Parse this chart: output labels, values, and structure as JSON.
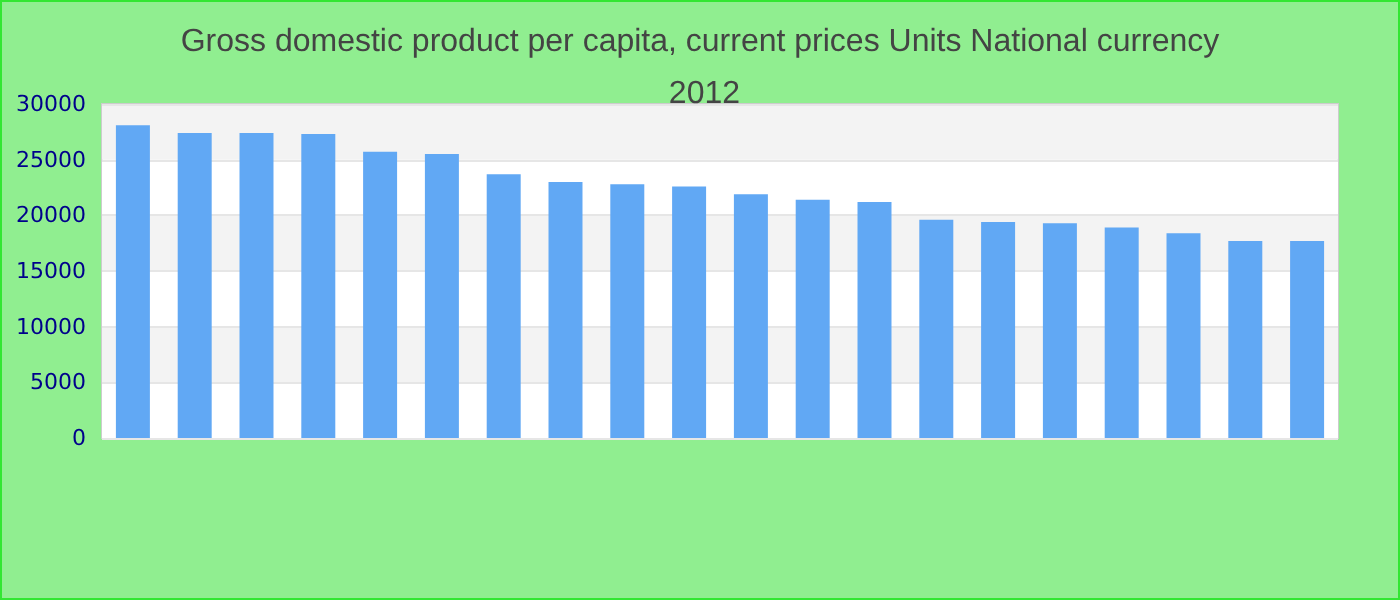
{
  "chart_data": {
    "type": "bar",
    "title": "Gross domestic product per capita, current prices Units National currency 2012",
    "categories": [
      null,
      null,
      null,
      null,
      null,
      null,
      null,
      null,
      null,
      null,
      null,
      null,
      null,
      null,
      null,
      null,
      null,
      null,
      null,
      null
    ],
    "values": [
      28100,
      27400,
      27400,
      27300,
      25700,
      25500,
      23700,
      23000,
      22800,
      22600,
      21900,
      21400,
      21200,
      19600,
      19400,
      19300,
      18900,
      18400,
      17700,
      17700
    ],
    "color": "#61a8f4",
    "ylim": [
      0,
      30000
    ],
    "yticks": [
      0,
      5000,
      10000,
      15000,
      20000,
      25000,
      30000
    ],
    "grid": "y"
  }
}
